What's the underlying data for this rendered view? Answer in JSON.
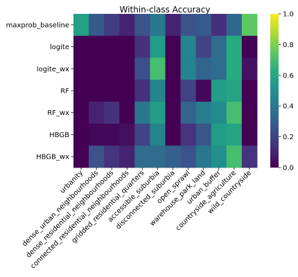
{
  "chart_data": {
    "type": "heatmap",
    "title": "Within-class Accuracy",
    "xlabel": "",
    "ylabel": "",
    "colormap": "viridis",
    "vmin": 0.0,
    "vmax": 1.0,
    "colorbar_ticks": [
      "0.0",
      "0.2",
      "0.4",
      "0.6",
      "0.8",
      "1.0"
    ],
    "rows": [
      "maxprob_baseline",
      "logite",
      "logite_wx",
      "RF",
      "RF_wx",
      "HBGB",
      "HBGB_wx"
    ],
    "columns": [
      "urbanity",
      "dense_urban_neighbourhoods",
      "dense_residential_neighbourhoods",
      "connected_residential_neighbourhoods",
      "gridded_residential_quarters",
      "accessible_suburbia",
      "disconnected_suburbia",
      "open_sprawl",
      "warehouse_park_land",
      "urban_buffer",
      "countryside_agriculture",
      "wild_countryside"
    ],
    "values": [
      [
        0.57,
        0.28,
        0.18,
        0.1,
        0.25,
        0.4,
        0.1,
        0.25,
        0.28,
        0.13,
        0.33,
        0.75
      ],
      [
        0.0,
        0.0,
        0.0,
        0.0,
        0.14,
        0.55,
        0.0,
        0.45,
        0.2,
        0.35,
        0.62,
        0.0
      ],
      [
        0.0,
        0.0,
        0.0,
        0.0,
        0.24,
        0.7,
        0.0,
        0.45,
        0.32,
        0.35,
        0.62,
        0.05
      ],
      [
        0.0,
        0.0,
        0.0,
        0.0,
        0.14,
        0.45,
        0.0,
        0.2,
        0.02,
        0.55,
        0.58,
        0.0
      ],
      [
        0.0,
        0.1,
        0.15,
        0.0,
        0.4,
        0.55,
        0.0,
        0.32,
        0.42,
        0.48,
        0.7,
        0.0
      ],
      [
        0.0,
        0.02,
        0.02,
        0.04,
        0.2,
        0.45,
        0.0,
        0.15,
        0.27,
        0.55,
        0.58,
        0.0
      ],
      [
        0.0,
        0.25,
        0.15,
        0.1,
        0.35,
        0.35,
        0.3,
        0.25,
        0.4,
        0.5,
        0.7,
        0.15
      ]
    ]
  }
}
